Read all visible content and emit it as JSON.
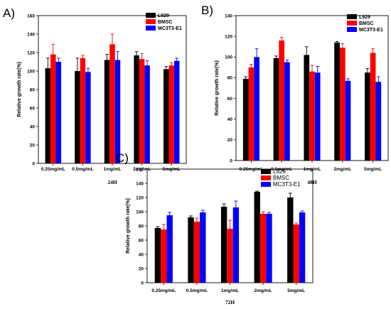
{
  "chart_data": [
    {
      "panel": "A)",
      "type": "bar",
      "xlabel": "24H",
      "ylabel": "Relative growth rate(%)",
      "ylim": [
        0,
        160
      ],
      "yticks": [
        "0",
        "20",
        "40",
        "60",
        "80",
        "100",
        "120",
        "140",
        "160"
      ],
      "categories": [
        "0.25mg/mL",
        "0.5mg/mL",
        "1mg/mL",
        "2mg/mL",
        "5mg/mL"
      ],
      "series": [
        {
          "name": "L929",
          "color": "#000000",
          "values": [
            103,
            100,
            112,
            117,
            102
          ],
          "errors": [
            11,
            14,
            6,
            4,
            3
          ]
        },
        {
          "name": "BMSC",
          "color": "#ff0000",
          "values": [
            118,
            114,
            129,
            113,
            106
          ],
          "errors": [
            11,
            3,
            11,
            6,
            3
          ]
        },
        {
          "name": "MC3T3-E1",
          "color": "#0000ff",
          "values": [
            110,
            99,
            112,
            106,
            111
          ],
          "errors": [
            4,
            4,
            9,
            5,
            3
          ]
        }
      ],
      "legend": "top-right",
      "error_bars": true
    },
    {
      "panel": "B)",
      "type": "bar",
      "xlabel": "48H",
      "ylabel": "Relative growth rate(%)",
      "ylim": [
        0,
        140
      ],
      "yticks": [
        "0",
        "20",
        "40",
        "60",
        "80",
        "100",
        "120",
        "140"
      ],
      "categories": [
        "0.25mg/mL",
        "0.5mg/mL",
        "1mg/mL",
        "2mg/mL",
        "5mg/mL"
      ],
      "series": [
        {
          "name": "L929",
          "color": "#000000",
          "values": [
            79,
            99,
            102,
            114,
            85
          ],
          "errors": [
            2,
            2,
            8,
            1,
            4
          ]
        },
        {
          "name": "BMSC",
          "color": "#ff0000",
          "values": [
            90,
            116,
            86,
            109,
            104
          ],
          "errors": [
            3,
            3,
            6,
            4,
            4
          ]
        },
        {
          "name": "MC3T3-E1",
          "color": "#0000ff",
          "values": [
            100,
            95,
            85,
            77,
            76
          ],
          "errors": [
            8,
            2,
            6,
            2,
            5
          ]
        }
      ],
      "legend": "top-right",
      "error_bars": true
    },
    {
      "panel": "C)",
      "type": "bar",
      "xlabel": "72H",
      "ylabel": "Relative growth rate(%)",
      "ylim": [
        0,
        160
      ],
      "yticks": [
        "0",
        "20",
        "40",
        "60",
        "80",
        "100",
        "120",
        "140",
        "160"
      ],
      "categories": [
        "0.25mg/mL",
        "0.5mg/mL",
        "1mg/mL",
        "2mg/mL",
        "5mg/mL"
      ],
      "series": [
        {
          "name": "L929",
          "color": "#000000",
          "values": [
            77,
            92,
            107,
            128,
            120
          ],
          "errors": [
            2,
            2,
            4,
            1,
            6
          ]
        },
        {
          "name": "BMSC",
          "color": "#ff0000",
          "values": [
            75,
            86,
            76,
            97,
            82
          ],
          "errors": [
            7,
            5,
            12,
            3,
            2
          ]
        },
        {
          "name": "MC3T3-E1",
          "color": "#0000ff",
          "values": [
            95,
            99,
            106,
            97,
            99
          ],
          "errors": [
            4,
            3,
            9,
            2,
            2
          ]
        }
      ],
      "legend": "top-right",
      "error_bars": true
    }
  ]
}
